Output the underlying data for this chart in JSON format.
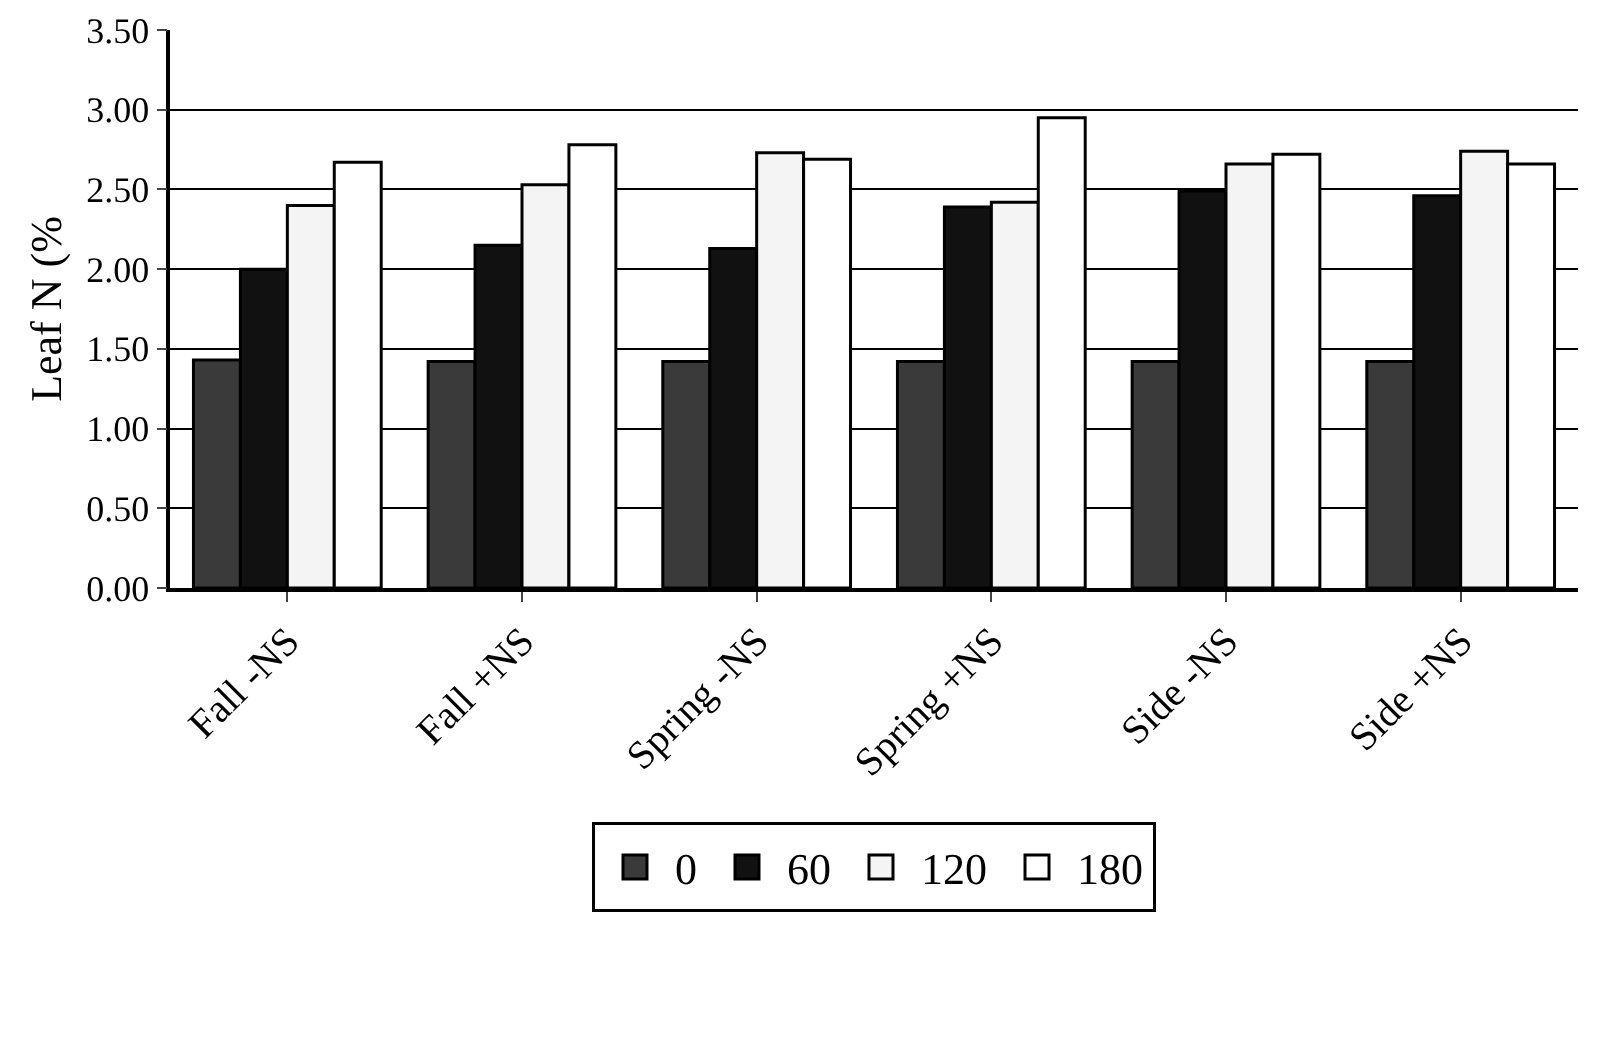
{
  "chart_data": {
    "type": "bar",
    "ylabel": "Leaf N (%",
    "categories": [
      "Fall -NS",
      "Fall +NS",
      "Spring -NS",
      "Spring +NS",
      "Side -NS",
      "Side +NS"
    ],
    "series": [
      {
        "name": "0",
        "color": "#3a3a3a",
        "values": [
          1.43,
          1.42,
          1.42,
          1.42,
          1.42,
          1.42
        ]
      },
      {
        "name": "60",
        "color": "#111111",
        "values": [
          2.0,
          2.15,
          2.13,
          2.39,
          2.49,
          2.46
        ]
      },
      {
        "name": "120",
        "color": "#f4f4f4",
        "values": [
          2.4,
          2.53,
          2.73,
          2.42,
          2.66,
          2.74
        ]
      },
      {
        "name": "180",
        "color": "#ffffff",
        "values": [
          2.67,
          2.78,
          2.69,
          2.95,
          2.72,
          2.66
        ]
      }
    ],
    "ylim": [
      0,
      3.5
    ],
    "yticks": [
      {
        "value": 0,
        "label": "0.00"
      },
      {
        "value": 0.5,
        "label": "0.50"
      },
      {
        "value": 1,
        "label": "1.00"
      },
      {
        "value": 1.5,
        "label": "1.50"
      },
      {
        "value": 2,
        "label": "2.00"
      },
      {
        "value": 2.5,
        "label": "2.50"
      },
      {
        "value": 3,
        "label": "3.00"
      },
      {
        "value": 3.5,
        "label": "3.50"
      }
    ],
    "grid": "y",
    "legend": "bottom"
  }
}
